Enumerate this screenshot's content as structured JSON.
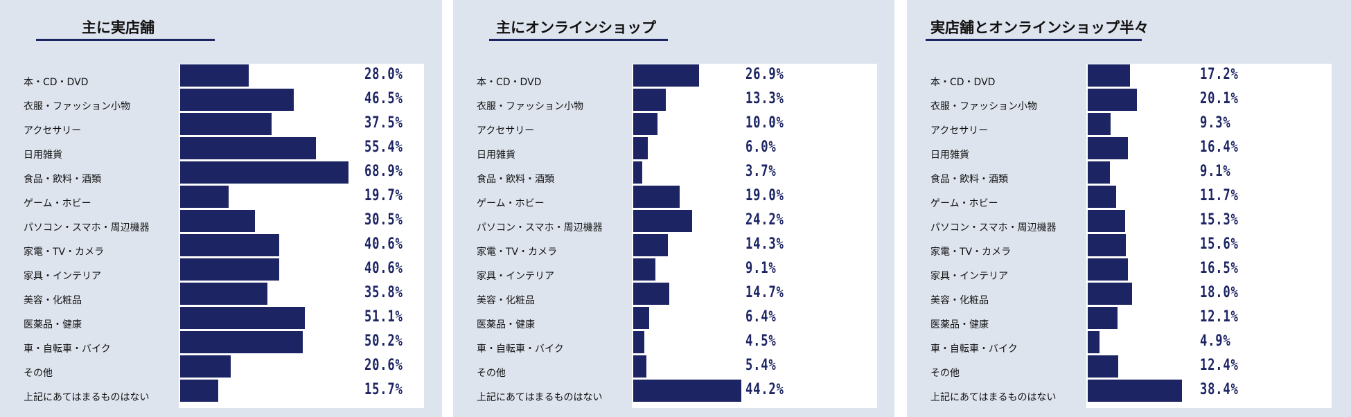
{
  "colors": {
    "panel_bg": "#dee4ee",
    "plot_bg": "#ffffff",
    "bar": "#1c2464",
    "underline": "#1c2464"
  },
  "chart_data": [
    {
      "type": "bar",
      "orientation": "horizontal",
      "title": "主に実店舗",
      "categories": [
        "本・CD・DVD",
        "衣服・ファッション小物",
        "アクセサリー",
        "日用雑貨",
        "食品・飲料・酒類",
        "ゲーム・ホビー",
        "パソコン・スマホ・周辺機器",
        "家電・TV・カメラ",
        "家具・インテリア",
        "美容・化粧品",
        "医薬品・健康",
        "車・自転車・バイク",
        "その他",
        "上記にあてはまるものはない"
      ],
      "values": [
        28.0,
        46.5,
        37.5,
        55.4,
        68.9,
        19.7,
        30.5,
        40.6,
        40.6,
        35.8,
        51.1,
        50.2,
        20.6,
        15.7
      ],
      "value_labels": [
        "28.0%",
        "46.5%",
        "37.5%",
        "55.4%",
        "68.9%",
        "19.7%",
        "30.5%",
        "40.6%",
        "40.6%",
        "35.8%",
        "51.1%",
        "50.2%",
        "20.6%",
        "15.7%"
      ],
      "unit": "%",
      "xlim": [
        0,
        100
      ],
      "grid": false
    },
    {
      "type": "bar",
      "orientation": "horizontal",
      "title": "主にオンラインショップ",
      "categories": [
        "本・CD・DVD",
        "衣服・ファッション小物",
        "アクセサリー",
        "日用雑貨",
        "食品・飲料・酒類",
        "ゲーム・ホビー",
        "パソコン・スマホ・周辺機器",
        "家電・TV・カメラ",
        "家具・インテリア",
        "美容・化粧品",
        "医薬品・健康",
        "車・自転車・バイク",
        "その他",
        "上記にあてはまるものはない"
      ],
      "values": [
        26.9,
        13.3,
        10.0,
        6.0,
        3.7,
        19.0,
        24.2,
        14.3,
        9.1,
        14.7,
        6.4,
        4.5,
        5.4,
        44.2
      ],
      "value_labels": [
        "26.9%",
        "13.3%",
        "10.0%",
        "6.0%",
        "3.7%",
        "19.0%",
        "24.2%",
        "14.3%",
        "9.1%",
        "14.7%",
        "6.4%",
        "4.5%",
        "5.4%",
        "44.2%"
      ],
      "unit": "%",
      "xlim": [
        0,
        100
      ],
      "grid": false
    },
    {
      "type": "bar",
      "orientation": "horizontal",
      "title": "実店舗とオンラインショップ半々",
      "categories": [
        "本・CD・DVD",
        "衣服・ファッション小物",
        "アクセサリー",
        "日用雑貨",
        "食品・飲料・酒類",
        "ゲーム・ホビー",
        "パソコン・スマホ・周辺機器",
        "家電・TV・カメラ",
        "家具・インテリア",
        "美容・化粧品",
        "医薬品・健康",
        "車・自転車・バイク",
        "その他",
        "上記にあてはまるものはない"
      ],
      "values": [
        17.2,
        20.1,
        9.3,
        16.4,
        9.1,
        11.7,
        15.3,
        15.6,
        16.5,
        18.0,
        12.1,
        4.9,
        12.4,
        38.4
      ],
      "value_labels": [
        "17.2%",
        "20.1%",
        "9.3%",
        "16.4%",
        "9.1%",
        "11.7%",
        "15.3%",
        "15.6%",
        "16.5%",
        "18.0%",
        "12.1%",
        "4.9%",
        "12.4%",
        "38.4%"
      ],
      "unit": "%",
      "xlim": [
        0,
        100
      ],
      "grid": false
    }
  ]
}
